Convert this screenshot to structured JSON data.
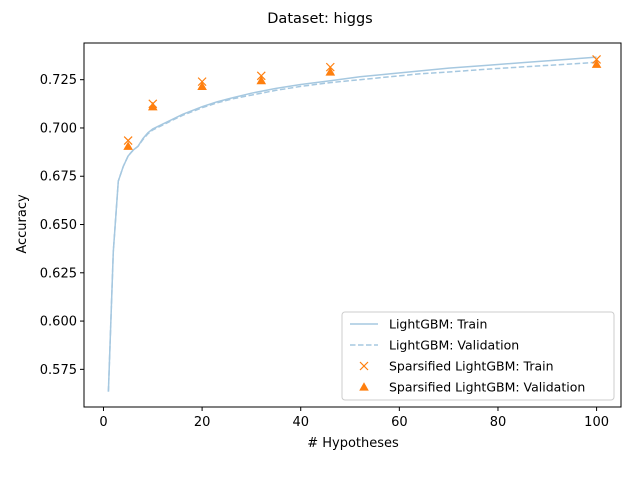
{
  "chart_data": {
    "type": "line",
    "title": "Dataset: higgs",
    "xlabel": "# Hypotheses",
    "ylabel": "Accuracy",
    "xlim": [
      -3.95,
      104.95
    ],
    "ylim": [
      0.5555,
      0.744
    ],
    "x_ticks": [
      0,
      20,
      40,
      60,
      80,
      100
    ],
    "x_tick_labels": [
      "0",
      "20",
      "40",
      "60",
      "80",
      "100"
    ],
    "y_ticks": [
      0.575,
      0.6,
      0.625,
      0.65,
      0.675,
      0.7,
      0.725
    ],
    "y_tick_labels": [
      "0.575",
      "0.600",
      "0.625",
      "0.650",
      "0.675",
      "0.700",
      "0.725"
    ],
    "grid": false,
    "legend_position": "lower-right",
    "series": [
      {
        "name": "LightGBM: Train",
        "style": "solid-line",
        "color": "#a6c8e0",
        "x": [
          1,
          2,
          3,
          4,
          5,
          6,
          7,
          8,
          9,
          10,
          12,
          14,
          16,
          18,
          20,
          23,
          26,
          30,
          35,
          40,
          46,
          52,
          58,
          64,
          70,
          78,
          86,
          94,
          100
        ],
        "y": [
          0.5635,
          0.636,
          0.6725,
          0.68,
          0.6855,
          0.6885,
          0.6905,
          0.6945,
          0.6975,
          0.6995,
          0.702,
          0.7045,
          0.707,
          0.709,
          0.711,
          0.7135,
          0.7155,
          0.718,
          0.7205,
          0.7225,
          0.7245,
          0.7265,
          0.728,
          0.7295,
          0.731,
          0.7325,
          0.734,
          0.7355,
          0.7367
        ]
      },
      {
        "name": "LightGBM: Validation",
        "style": "dashed-line",
        "color": "#a6c8e0",
        "x": [
          1,
          2,
          3,
          4,
          5,
          6,
          7,
          8,
          9,
          10,
          12,
          14,
          16,
          18,
          20,
          23,
          26,
          30,
          35,
          40,
          46,
          52,
          58,
          64,
          70,
          78,
          86,
          94,
          100
        ],
        "y": [
          0.5635,
          0.636,
          0.6725,
          0.68,
          0.6855,
          0.6885,
          0.6905,
          0.694,
          0.697,
          0.699,
          0.7015,
          0.704,
          0.7065,
          0.7085,
          0.7105,
          0.713,
          0.715,
          0.717,
          0.7195,
          0.7215,
          0.7235,
          0.725,
          0.7265,
          0.728,
          0.729,
          0.7305,
          0.7318,
          0.733,
          0.734
        ]
      },
      {
        "name": "Sparsified LightGBM: Train",
        "style": "x-marker",
        "color": "#ff7f0e",
        "x": [
          5,
          10,
          20,
          32,
          46,
          100
        ],
        "y": [
          0.6935,
          0.7125,
          0.724,
          0.727,
          0.7315,
          0.7355
        ]
      },
      {
        "name": "Sparsified LightGBM: Validation",
        "style": "triangle-marker",
        "color": "#ff7f0e",
        "x": [
          5,
          10,
          20,
          32,
          46,
          100
        ],
        "y": [
          0.6905,
          0.711,
          0.7215,
          0.7245,
          0.729,
          0.733
        ]
      }
    ]
  }
}
